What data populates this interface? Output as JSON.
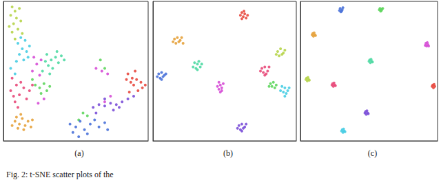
{
  "caption": "Fig. 2: t-SNE scatter plots of the",
  "chart_data": [
    {
      "type": "scatter",
      "title": "(a)",
      "xlim": [
        0,
        100
      ],
      "ylim": [
        0,
        100
      ],
      "tick_labels": false,
      "grid": false,
      "series": [
        {
          "color": "#b6d44a",
          "values": [
            [
              6,
              96
            ],
            [
              8,
              93
            ],
            [
              5,
              90
            ],
            [
              9,
              88
            ],
            [
              7,
              84
            ],
            [
              10,
              80
            ],
            [
              6,
              78
            ],
            [
              12,
              86
            ],
            [
              8,
              73
            ],
            [
              11,
              95
            ],
            [
              4,
              82
            ],
            [
              13,
              77
            ]
          ]
        },
        {
          "color": "#48cde3",
          "values": [
            [
              10,
              70
            ],
            [
              13,
              66
            ],
            [
              11,
              62
            ],
            [
              16,
              64
            ],
            [
              14,
              58
            ],
            [
              12,
              74
            ],
            [
              18,
              68
            ],
            [
              9,
              57
            ],
            [
              15,
              72
            ],
            [
              17,
              60
            ],
            [
              5,
              52
            ],
            [
              8,
              48
            ]
          ]
        },
        {
          "color": "#4fd9a3",
          "values": [
            [
              30,
              62
            ],
            [
              33,
              58
            ],
            [
              36,
              60
            ],
            [
              31,
              54
            ],
            [
              38,
              56
            ],
            [
              34,
              52
            ],
            [
              40,
              61
            ],
            [
              29,
              57
            ],
            [
              42,
              58
            ],
            [
              37,
              64
            ],
            [
              32,
              48
            ],
            [
              27,
              50
            ]
          ]
        },
        {
          "color": "#e84a7a",
          "values": [
            [
              6,
              45
            ],
            [
              9,
              40
            ],
            [
              5,
              36
            ],
            [
              11,
              33
            ],
            [
              8,
              28
            ],
            [
              12,
              42
            ],
            [
              14,
              38
            ],
            [
              16,
              30
            ],
            [
              10,
              24
            ],
            [
              18,
              36
            ],
            [
              20,
              40
            ],
            [
              7,
              32
            ]
          ]
        },
        {
          "color": "#e5a23c",
          "values": [
            [
              8,
              14
            ],
            [
              11,
              12
            ],
            [
              13,
              16
            ],
            [
              15,
              11
            ],
            [
              10,
              9
            ],
            [
              17,
              14
            ],
            [
              9,
              17
            ],
            [
              19,
              10
            ],
            [
              14,
              8
            ],
            [
              12,
              19
            ],
            [
              6,
              11
            ],
            [
              20,
              15
            ]
          ]
        },
        {
          "color": "#5fd65e",
          "values": [
            [
              22,
              40
            ],
            [
              25,
              38
            ],
            [
              28,
              41
            ],
            [
              30,
              36
            ],
            [
              26,
              34
            ],
            [
              32,
              39
            ],
            [
              20,
              44
            ],
            [
              52,
              15
            ],
            [
              55,
              20
            ],
            [
              58,
              18
            ],
            [
              67,
              58
            ],
            [
              70,
              52
            ]
          ]
        },
        {
          "color": "#e8493f",
          "values": [
            [
              86,
              48
            ],
            [
              89,
              45
            ],
            [
              92,
              44
            ],
            [
              95,
              42
            ],
            [
              90,
              40
            ],
            [
              96,
              38
            ],
            [
              93,
              36
            ],
            [
              88,
              42
            ],
            [
              98,
              40
            ],
            [
              85,
              44
            ],
            [
              91,
              50
            ],
            [
              87,
              35
            ]
          ]
        },
        {
          "color": "#7b4fd8",
          "values": [
            [
              62,
              24
            ],
            [
              66,
              26
            ],
            [
              70,
              25
            ],
            [
              74,
              27
            ],
            [
              78,
              26
            ],
            [
              82,
              28
            ],
            [
              86,
              30
            ],
            [
              76,
              22
            ],
            [
              80,
              24
            ],
            [
              90,
              32
            ],
            [
              70,
              30
            ],
            [
              64,
              20
            ]
          ]
        },
        {
          "color": "#4a72d9",
          "values": [
            [
              46,
              12
            ],
            [
              50,
              10
            ],
            [
              53,
              14
            ],
            [
              48,
              6
            ],
            [
              56,
              8
            ],
            [
              60,
              12
            ],
            [
              58,
              5
            ],
            [
              63,
              15
            ],
            [
              66,
              10
            ],
            [
              70,
              13
            ],
            [
              52,
              3
            ],
            [
              72,
              8
            ]
          ]
        },
        {
          "color": "#d64ed6",
          "values": [
            [
              20,
              50
            ],
            [
              23,
              55
            ],
            [
              25,
              47
            ],
            [
              64,
              52
            ],
            [
              68,
              50
            ],
            [
              72,
              48
            ],
            [
              28,
              30
            ],
            [
              24,
              27
            ],
            [
              70,
              28
            ],
            [
              74,
              32
            ],
            [
              21,
              60
            ],
            [
              26,
              58
            ]
          ]
        }
      ]
    },
    {
      "type": "scatter",
      "title": "(b)",
      "xlim": [
        0,
        100
      ],
      "ylim": [
        0,
        100
      ],
      "tick_labels": false,
      "grid": false,
      "series": [
        {
          "color": "#e8493f",
          "values": [
            [
              62,
              92
            ],
            [
              64,
              91
            ],
            [
              63,
              89
            ],
            [
              65,
              88
            ],
            [
              61,
              90
            ],
            [
              63.5,
              93
            ],
            [
              66,
              90
            ],
            [
              62,
              87.5
            ]
          ]
        },
        {
          "color": "#e5a23c",
          "values": [
            [
              15,
              73
            ],
            [
              17,
              74
            ],
            [
              19,
              72
            ],
            [
              16,
              70
            ],
            [
              18,
              71
            ],
            [
              20,
              74
            ],
            [
              14,
              71
            ],
            [
              21,
              70
            ]
          ]
        },
        {
          "color": "#4fd9a3",
          "values": [
            [
              29,
              56
            ],
            [
              31,
              55
            ],
            [
              33,
              53
            ],
            [
              30,
              52
            ],
            [
              32,
              57
            ],
            [
              34,
              55
            ],
            [
              28,
              53
            ],
            [
              31,
              51
            ]
          ]
        },
        {
          "color": "#4a72d9",
          "values": [
            [
              4,
              48
            ],
            [
              6,
              49
            ],
            [
              8,
              47
            ],
            [
              5,
              45
            ],
            [
              7,
              46
            ],
            [
              9,
              48
            ],
            [
              3,
              46
            ],
            [
              6,
              44
            ]
          ]
        },
        {
          "color": "#d64ed6",
          "values": [
            [
              46,
              42
            ],
            [
              47,
              40
            ],
            [
              48,
              38
            ],
            [
              46,
              37
            ],
            [
              48,
              36
            ],
            [
              45,
              39
            ],
            [
              49,
              41
            ],
            [
              47,
              35
            ]
          ]
        },
        {
          "color": "#7b4fd8",
          "values": [
            [
              60,
              11
            ],
            [
              62,
              12
            ],
            [
              64,
              10
            ],
            [
              61,
              8
            ],
            [
              63,
              9
            ],
            [
              65,
              12
            ],
            [
              59,
              9
            ],
            [
              62,
              7
            ]
          ]
        },
        {
          "color": "#e84a7a",
          "values": [
            [
              76,
              52
            ],
            [
              78,
              53
            ],
            [
              80,
              50
            ],
            [
              77,
              49
            ],
            [
              79,
              48
            ],
            [
              75,
              50
            ],
            [
              81,
              53
            ],
            [
              78,
              47
            ]
          ]
        },
        {
          "color": "#b6d44a",
          "values": [
            [
              87,
              64
            ],
            [
              89,
              66
            ],
            [
              91,
              63
            ],
            [
              88,
              61
            ],
            [
              90,
              62
            ],
            [
              92,
              65
            ],
            [
              86,
              62
            ]
          ]
        },
        {
          "color": "#48cde3",
          "values": [
            [
              90,
              39
            ],
            [
              92,
              38
            ],
            [
              94,
              36
            ],
            [
              91,
              35
            ],
            [
              93,
              34
            ],
            [
              89,
              36
            ],
            [
              95,
              38
            ],
            [
              92,
              32
            ]
          ]
        },
        {
          "color": "#5fd65e",
          "values": [
            [
              82,
              41
            ],
            [
              84,
              42
            ],
            [
              86,
              40
            ],
            [
              83,
              39
            ],
            [
              85,
              38
            ],
            [
              81,
              39
            ]
          ]
        }
      ]
    },
    {
      "type": "scatter",
      "title": "(c)",
      "xlim": [
        0,
        100
      ],
      "ylim": [
        0,
        100
      ],
      "tick_labels": false,
      "grid": false,
      "series": [
        {
          "color": "#4a72d9",
          "values": [
            [
              29,
              95
            ],
            [
              30.5,
              94
            ],
            [
              29.5,
              92.5
            ],
            [
              31,
              95.5
            ],
            [
              28.5,
              93.5
            ],
            [
              30,
              93
            ]
          ]
        },
        {
          "color": "#5fd65e",
          "values": [
            [
              58,
              95
            ],
            [
              59.5,
              94.5
            ],
            [
              58.5,
              93
            ],
            [
              57.5,
              94
            ],
            [
              59,
              93.5
            ],
            [
              60,
              95
            ]
          ]
        },
        {
          "color": "#e5a23c",
          "values": [
            [
              9,
              77
            ],
            [
              10.5,
              76
            ],
            [
              9.5,
              75
            ],
            [
              8.5,
              76
            ],
            [
              10,
              77.5
            ],
            [
              11,
              75.5
            ]
          ]
        },
        {
          "color": "#d64ed6",
          "values": [
            [
              91.5,
              70
            ],
            [
              93,
              69
            ],
            [
              92,
              68
            ],
            [
              91,
              68.5
            ],
            [
              92.5,
              70.5
            ],
            [
              93.5,
              68
            ]
          ]
        },
        {
          "color": "#4fd9a3",
          "values": [
            [
              50.5,
              58
            ],
            [
              52,
              57
            ],
            [
              51,
              56
            ],
            [
              50,
              57
            ],
            [
              51.5,
              58.5
            ],
            [
              52.5,
              56.5
            ]
          ]
        },
        {
          "color": "#e84a7a",
          "values": [
            [
              23.5,
              41
            ],
            [
              25,
              40
            ],
            [
              24,
              39
            ],
            [
              23,
              40
            ],
            [
              24.5,
              41.5
            ],
            [
              25.5,
              39.5
            ]
          ]
        },
        {
          "color": "#b6d44a",
          "values": [
            [
              4.5,
              45
            ],
            [
              6,
              44
            ],
            [
              5,
              43
            ],
            [
              4,
              44
            ],
            [
              5.5,
              45.5
            ],
            [
              6.5,
              43.5
            ]
          ]
        },
        {
          "color": "#e8493f",
          "values": [
            [
              96.5,
              40
            ],
            [
              98,
              39
            ],
            [
              97,
              38
            ],
            [
              96,
              39
            ],
            [
              97.5,
              40.5
            ]
          ]
        },
        {
          "color": "#7b4fd8",
          "values": [
            [
              47.5,
              21
            ],
            [
              49,
              20
            ],
            [
              48,
              19
            ],
            [
              47,
              20
            ],
            [
              48.5,
              21.5
            ],
            [
              49.5,
              19.5
            ]
          ]
        },
        {
          "color": "#48cde3",
          "values": [
            [
              30.5,
              8
            ],
            [
              32,
              7
            ],
            [
              31,
              6
            ],
            [
              30,
              7
            ],
            [
              31.5,
              8.5
            ],
            [
              32.5,
              6.5
            ]
          ]
        }
      ]
    }
  ]
}
